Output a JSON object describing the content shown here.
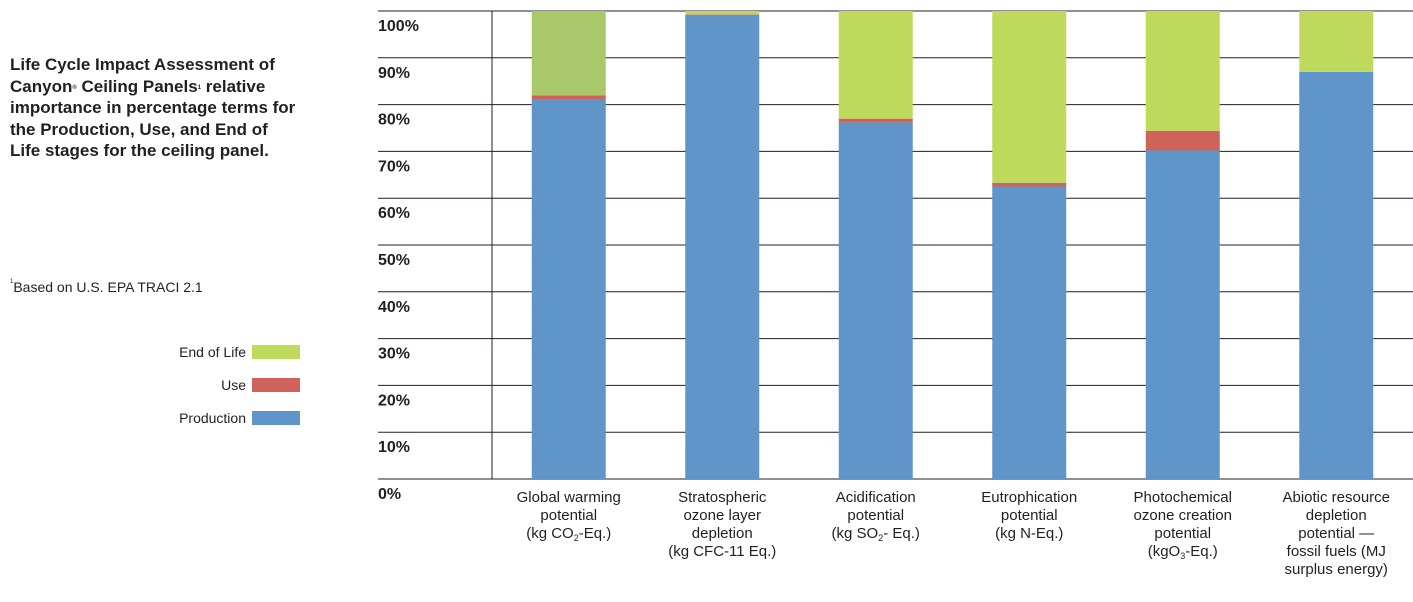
{
  "title_parts": {
    "part1": "Life Cycle Impact Assessment of Canyon",
    "sup1": "®",
    "part2": " Ceiling Panels",
    "sup2": "1",
    "part3": " relative importance in percentage terms for the Production, Use, and End of Life stages for the ceiling panel."
  },
  "footnote": {
    "marker": "1",
    "text": "Based on U.S. EPA TRACI 2.1"
  },
  "colors": {
    "production": "#5f95c8",
    "use": "#cf625a",
    "end_of_life_first": "#a8c86a",
    "end_of_life": "#bfd95c",
    "grid": "#231f20"
  },
  "chart_data": {
    "type": "bar",
    "stacked": true,
    "categories": [
      [
        "Global warming",
        "potential",
        "(kg CO|2|-Eq.)"
      ],
      [
        "Stratospheric",
        "ozone layer",
        "depletion",
        "(kg CFC-11 Eq.)"
      ],
      [
        "Acidification",
        "potential",
        "(kg SO|2|- Eq.)"
      ],
      [
        "Eutrophication",
        "potential",
        "(kg N-Eq.)"
      ],
      [
        "Photochemical",
        "ozone creation",
        "potential",
        "(kgO|3|-Eq.)"
      ],
      [
        "Abiotic resource",
        "depletion",
        "potential —",
        "fossil fuels (MJ",
        "surplus energy)"
      ]
    ],
    "series": [
      {
        "name": "Production",
        "values": [
          81,
          99.2,
          76.2,
          62.5,
          70.2,
          87
        ]
      },
      {
        "name": "Use",
        "values": [
          1,
          0.1,
          0.8,
          0.8,
          4.2,
          0
        ]
      },
      {
        "name": "End of Life",
        "values": [
          18,
          0.7,
          23,
          36.7,
          25.6,
          13
        ]
      }
    ],
    "legend_order": [
      "End of Life",
      "Use",
      "Production"
    ],
    "y_ticks": [
      "0%",
      "10%",
      "20%",
      "30%",
      "40%",
      "50%",
      "60%",
      "70%",
      "80%",
      "90%",
      "100%"
    ],
    "ylim": [
      0,
      100
    ],
    "grid": true
  }
}
